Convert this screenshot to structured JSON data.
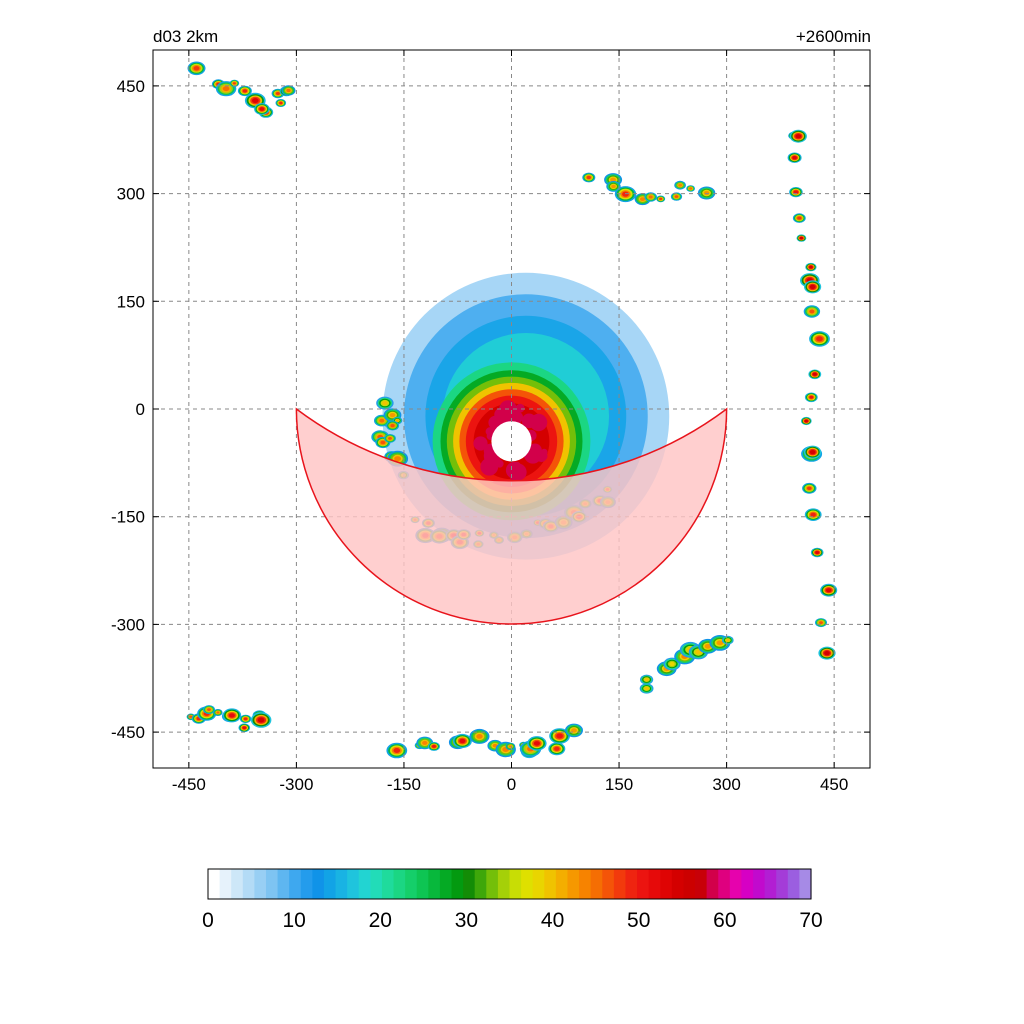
{
  "header": {
    "left_title": "d03 2km",
    "right_title": "+2600min"
  },
  "chart_data": {
    "type": "heatmap",
    "title": "",
    "xlabel": "",
    "ylabel": "",
    "xlim": [
      -500,
      500
    ],
    "ylim": [
      -500,
      500
    ],
    "x_ticks": [
      -450,
      -300,
      -150,
      0,
      150,
      300,
      450
    ],
    "y_ticks": [
      450,
      300,
      150,
      0,
      -150,
      -300,
      -450
    ],
    "grid": true,
    "field": "simulated reflectivity (tropical cyclone)",
    "eye_center": [
      0,
      -50
    ],
    "shaded_sector": {
      "center": [
        0,
        0
      ],
      "radius": 300,
      "angle_range_deg": [
        180,
        360
      ],
      "inner_arc_from": [
        -300,
        0
      ],
      "inner_arc_to": [
        300,
        0
      ],
      "inner_arc_through": [
        0,
        -100
      ],
      "fill": "#ffc4c4",
      "stroke": "#e8141c"
    },
    "colorbar": {
      "min": 0,
      "max": 70,
      "tick_labels": [
        "0",
        "10",
        "20",
        "30",
        "40",
        "50",
        "60",
        "70"
      ],
      "tick_values": [
        0,
        10,
        20,
        30,
        40,
        50,
        60,
        70
      ],
      "colors": [
        "#ffffff",
        "#e6f2fb",
        "#cde7f8",
        "#b3dbf6",
        "#98cff4",
        "#7ec4f2",
        "#5eb6f0",
        "#3ea8ef",
        "#249cec",
        "#1093e8",
        "#12a3e6",
        "#19b3e3",
        "#1fc4dd",
        "#22d4d2",
        "#22dcb8",
        "#1fdb9c",
        "#1bd683",
        "#15cf6a",
        "#0ec553",
        "#08b83c",
        "#05aa24",
        "#039a10",
        "#138c06",
        "#3ea70a",
        "#74bf09",
        "#a5d008",
        "#c8dd05",
        "#dfe000",
        "#e9d500",
        "#f0c300",
        "#f4ae00",
        "#f69800",
        "#f78300",
        "#f56e03",
        "#f45408",
        "#f23a0c",
        "#ef2410",
        "#ec1410",
        "#e60a0a",
        "#df0404",
        "#d40000",
        "#cc0000",
        "#c80008",
        "#d2004a",
        "#df007f",
        "#e602ad",
        "#d600c4",
        "#c10acd",
        "#b21ed3",
        "#a43cd8",
        "#9b5ee0",
        "#a68ae6"
      ]
    },
    "series": [
      {
        "name": "",
        "features": [
          {
            "kind": "eyewall",
            "x": 0,
            "y": -45,
            "r_inner": 28,
            "r_outer": 110,
            "peak": 55
          },
          {
            "kind": "stratiform_halo",
            "x": 20,
            "y": -10,
            "r": 200,
            "peak": 15
          },
          {
            "kind": "rainband_south",
            "points": [
              [
                -130,
                -160
              ],
              [
                -80,
                -180
              ],
              [
                0,
                -175
              ],
              [
                80,
                -150
              ],
              [
                150,
                -110
              ]
            ],
            "peak": 52
          },
          {
            "kind": "rainband_west",
            "points": [
              [
                -175,
                -60
              ],
              [
                -170,
                10
              ],
              [
                -150,
                -110
              ]
            ],
            "peak": 48
          },
          {
            "kind": "outer_band_sw",
            "points": [
              [
                -450,
                -420
              ],
              [
                -390,
                -430
              ],
              [
                -340,
                -440
              ]
            ],
            "peak": 55
          },
          {
            "kind": "outer_band_nw",
            "points": [
              [
                -430,
                470
              ],
              [
                -350,
                420
              ],
              [
                -300,
                450
              ]
            ],
            "peak": 55
          },
          {
            "kind": "outer_band_ne",
            "points": [
              [
                100,
                320
              ],
              [
                200,
                295
              ],
              [
                280,
                310
              ]
            ],
            "peak": 50
          },
          {
            "kind": "outer_band_se",
            "points": [
              [
                180,
                -380
              ],
              [
                260,
                -330
              ],
              [
                320,
                -320
              ]
            ],
            "peak": 45
          },
          {
            "kind": "cells_east",
            "points": [
              [
                400,
                380
              ],
              [
                420,
                170
              ],
              [
                420,
                -60
              ],
              [
                440,
                -340
              ]
            ],
            "peak": 55
          },
          {
            "kind": "cells_south",
            "points": [
              [
                -150,
                -480
              ],
              [
                -50,
                -460
              ],
              [
                20,
                -480
              ],
              [
                90,
                -450
              ]
            ],
            "peak": 52
          }
        ]
      }
    ]
  }
}
